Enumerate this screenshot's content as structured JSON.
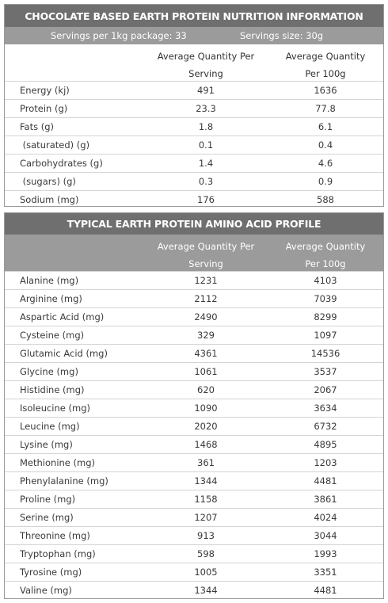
{
  "nutrition": {
    "title": "CHOCOLATE BASED EARTH PROTEIN NUTRITION INFORMATION",
    "servings_per_package": "Servings per 1kg package: 33",
    "serving_size": "Servings size: 30g",
    "header": {
      "col1_line1": "Average Quantity Per",
      "col1_line2": "Serving",
      "col2_line1": "Average Quantity",
      "col2_line2": "Per 100g"
    },
    "rows": [
      {
        "name": "Energy (kj)",
        "per_serving": "491",
        "per_100g": "1636"
      },
      {
        "name": "Protein (g)",
        "per_serving": "23.3",
        "per_100g": "77.8"
      },
      {
        "name": "Fats (g)",
        "per_serving": "1.8",
        "per_100g": "6.1"
      },
      {
        "name": " (saturated) (g)",
        "per_serving": "0.1",
        "per_100g": "0.4"
      },
      {
        "name": "Carbohydrates (g)",
        "per_serving": "1.4",
        "per_100g": "4.6"
      },
      {
        "name": " (sugars) (g)",
        "per_serving": "0.3",
        "per_100g": "0.9"
      },
      {
        "name": "Sodium (mg)",
        "per_serving": "176",
        "per_100g": "588"
      }
    ]
  },
  "amino": {
    "title": "TYPICAL EARTH PROTEIN AMINO ACID PROFILE",
    "header": {
      "col1_line1": "Average Quantity Per",
      "col1_line2": "Serving",
      "col2_line1": "Average Quantity",
      "col2_line2": "Per 100g"
    },
    "rows": [
      {
        "name": "Alanine (mg)",
        "per_serving": "1231",
        "per_100g": "4103"
      },
      {
        "name": "Arginine (mg)",
        "per_serving": "2112",
        "per_100g": "7039"
      },
      {
        "name": "Aspartic Acid (mg)",
        "per_serving": "2490",
        "per_100g": "8299"
      },
      {
        "name": "Cysteine (mg)",
        "per_serving": "329",
        "per_100g": "1097"
      },
      {
        "name": "Glutamic Acid (mg)",
        "per_serving": "4361",
        "per_100g": "14536"
      },
      {
        "name": "Glycine (mg)",
        "per_serving": "1061",
        "per_100g": "3537"
      },
      {
        "name": "Histidine (mg)",
        "per_serving": "620",
        "per_100g": "2067"
      },
      {
        "name": "Isoleucine (mg)",
        "per_serving": "1090",
        "per_100g": "3634"
      },
      {
        "name": "Leucine (mg)",
        "per_serving": "2020",
        "per_100g": "6732"
      },
      {
        "name": "Lysine (mg)",
        "per_serving": "1468",
        "per_100g": "4895"
      },
      {
        "name": "Methionine (mg)",
        "per_serving": "361",
        "per_100g": "1203"
      },
      {
        "name": "Phenylalanine (mg)",
        "per_serving": "1344",
        "per_100g": "4481"
      },
      {
        "name": "Proline (mg)",
        "per_serving": "1158",
        "per_100g": "3861"
      },
      {
        "name": "Serine (mg)",
        "per_serving": "1207",
        "per_100g": "4024"
      },
      {
        "name": "Threonine (mg)",
        "per_serving": "913",
        "per_100g": "3044"
      },
      {
        "name": "Tryptophan (mg)",
        "per_serving": "598",
        "per_100g": "1993"
      },
      {
        "name": "Tyrosine (mg)",
        "per_serving": "1005",
        "per_100g": "3351"
      },
      {
        "name": "Valine (mg)",
        "per_serving": "1344",
        "per_100g": "4481"
      }
    ]
  },
  "colors": {
    "title_bar": "#6f6f6f",
    "sub_bar": "#9b9b9b",
    "row_divider": "#d4d4d4",
    "text": "#3a3a3a"
  }
}
